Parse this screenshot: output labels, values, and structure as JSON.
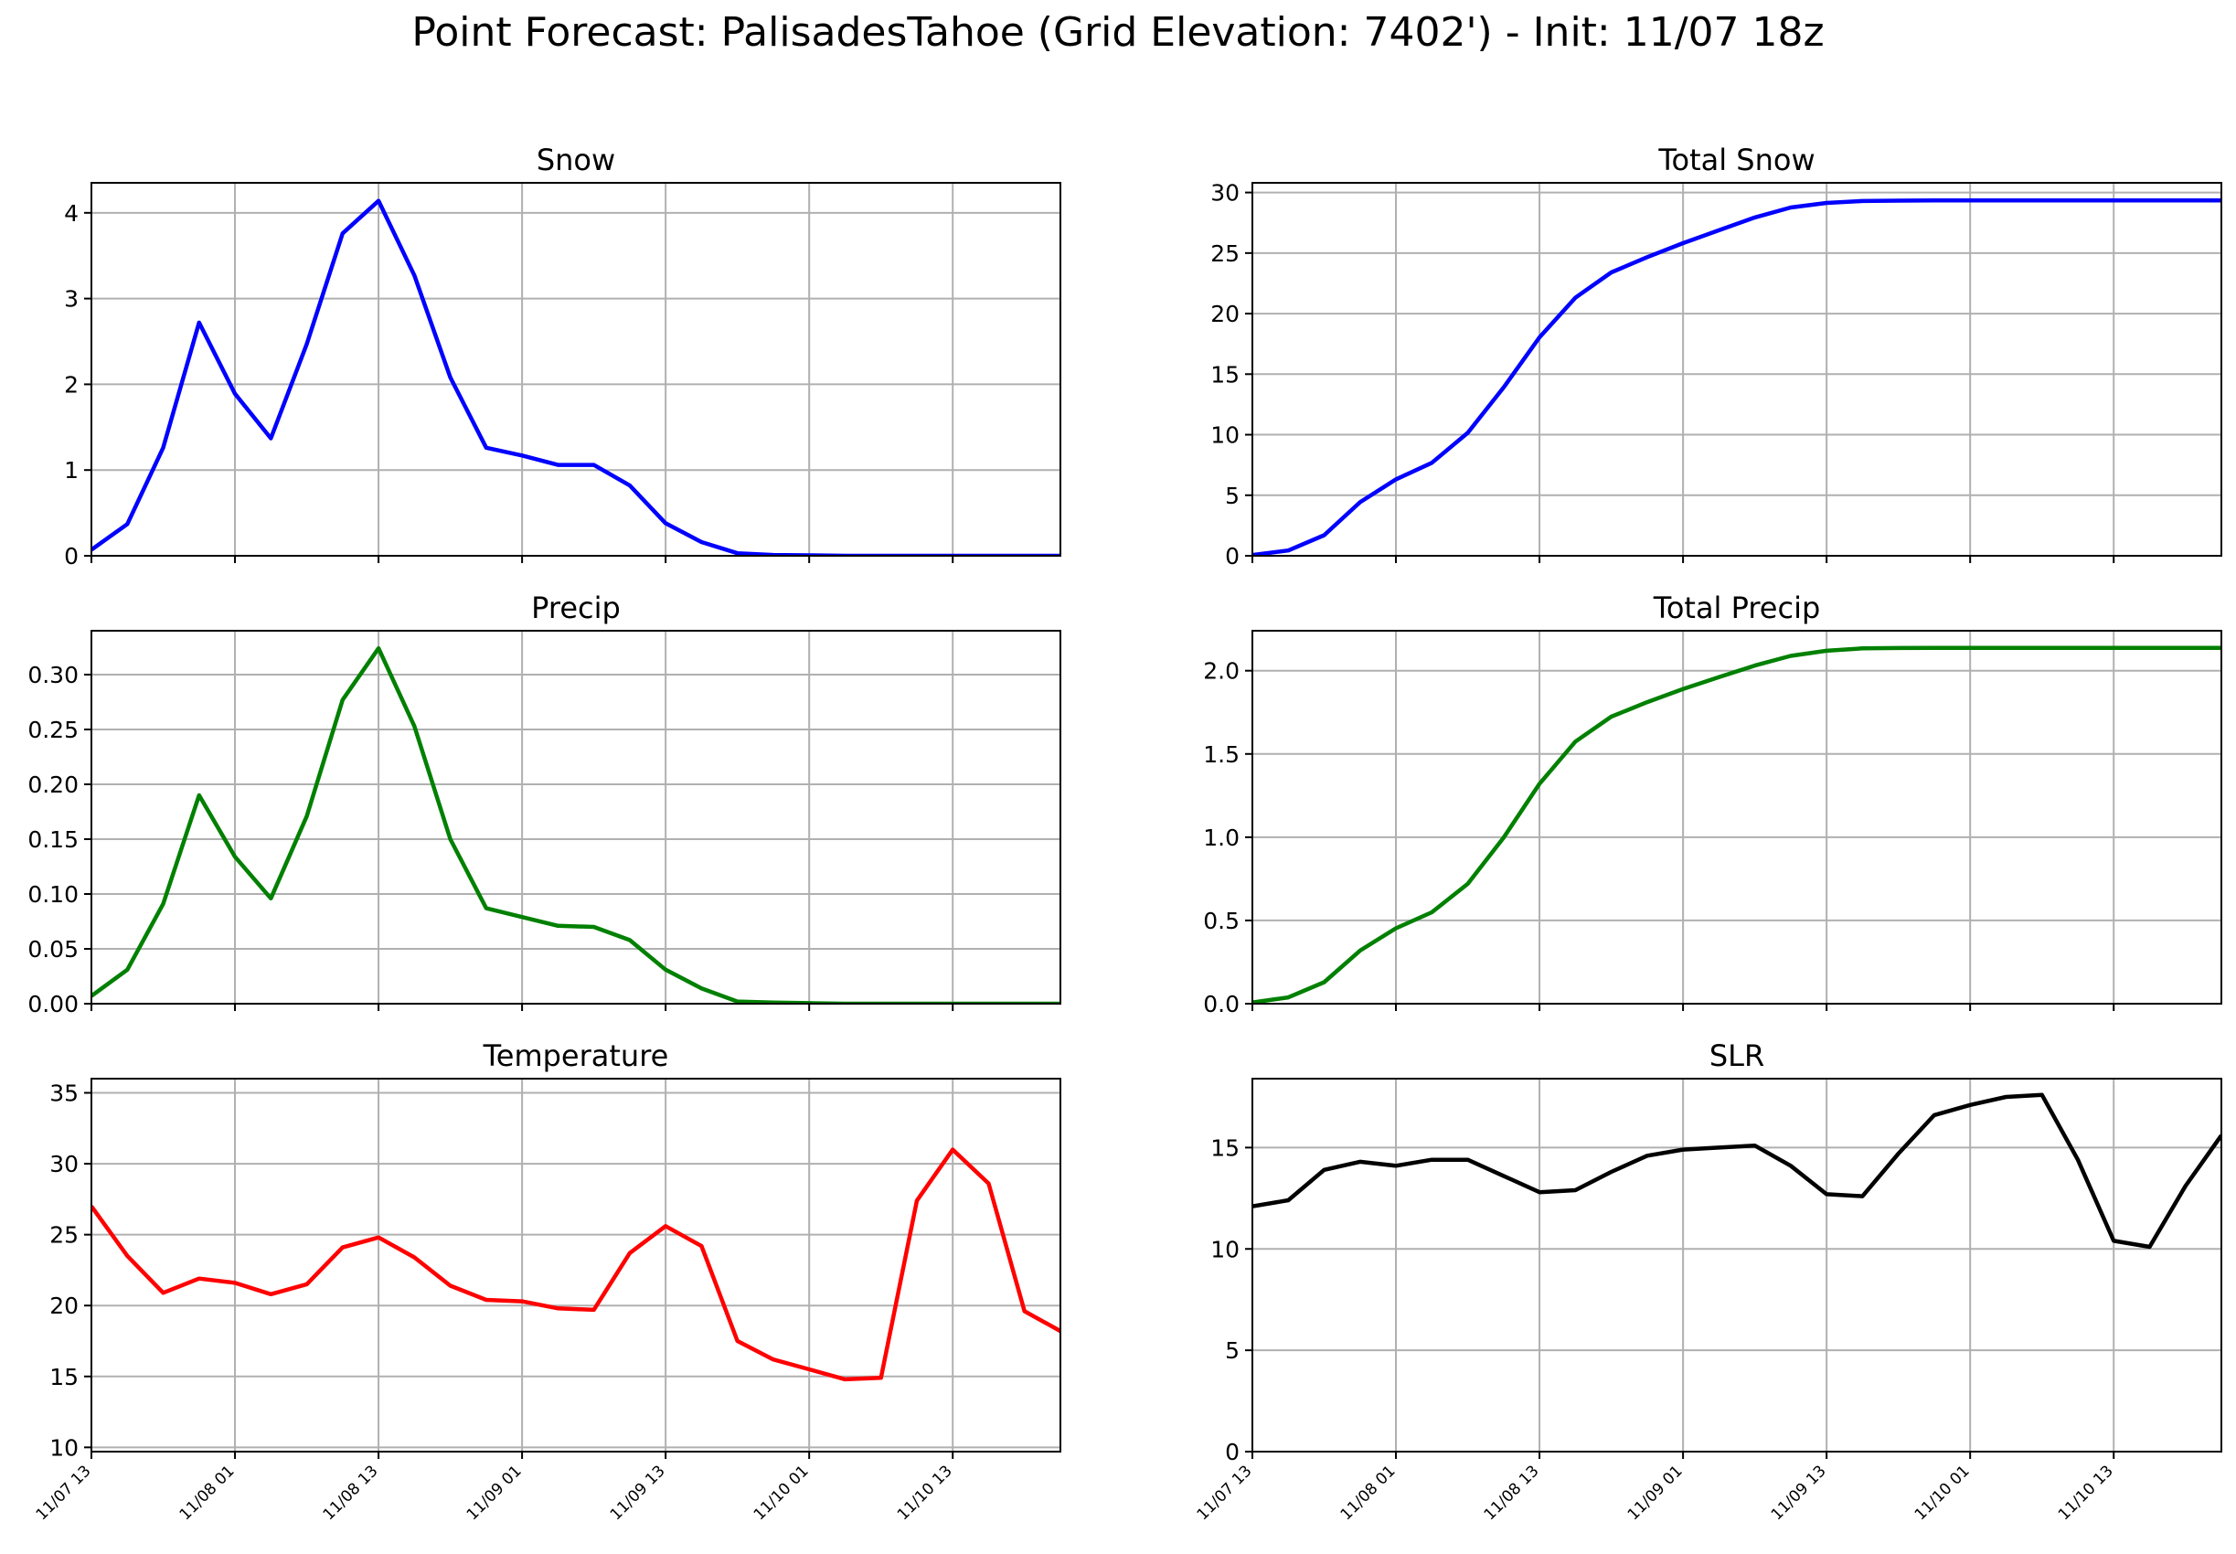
{
  "suptitle": "Point Forecast: PalisadesTahoe (Grid Elevation: 7402') - Init: 11/07 18z",
  "chart_data": [
    {
      "type": "line",
      "title": "Snow",
      "color": "#0000ff",
      "x": [
        "11/07 13",
        "11/07 16",
        "11/07 19",
        "11/07 22",
        "11/08 01",
        "11/08 04",
        "11/08 07",
        "11/08 10",
        "11/08 13",
        "11/08 16",
        "11/08 19",
        "11/08 22",
        "11/09 01",
        "11/09 04",
        "11/09 07",
        "11/09 10",
        "11/09 13",
        "11/09 16",
        "11/09 19",
        "11/09 22",
        "11/10 01",
        "11/10 04",
        "11/10 07",
        "11/10 10",
        "11/10 13",
        "11/10 16",
        "11/10 19",
        "11/10 22"
      ],
      "values": [
        0.07,
        0.37,
        1.26,
        2.72,
        1.89,
        1.37,
        2.47,
        3.76,
        4.14,
        3.27,
        2.08,
        1.26,
        1.17,
        1.06,
        1.06,
        0.82,
        0.38,
        0.16,
        0.03,
        0.01,
        0.005,
        0.0,
        0.0,
        0.0,
        0.0,
        0.0,
        0.0,
        0.0
      ],
      "ylim": [
        0,
        4.35
      ],
      "yticks": [
        "0",
        "1",
        "2",
        "3",
        "4"
      ],
      "ytick_values": [
        0,
        1,
        2,
        3,
        4
      ],
      "xtick_labels": [
        "11/07 13",
        "11/08 01",
        "11/08 13",
        "11/09 01",
        "11/09 13",
        "11/10 01",
        "11/10 13"
      ],
      "show_xticklabels": false,
      "grid": true
    },
    {
      "type": "line",
      "title": "Total Snow",
      "color": "#0000ff",
      "x": [
        "11/07 13",
        "11/07 16",
        "11/07 19",
        "11/07 22",
        "11/08 01",
        "11/08 04",
        "11/08 07",
        "11/08 10",
        "11/08 13",
        "11/08 16",
        "11/08 19",
        "11/08 22",
        "11/09 01",
        "11/09 04",
        "11/09 07",
        "11/09 10",
        "11/09 13",
        "11/09 16",
        "11/09 19",
        "11/09 22",
        "11/10 01",
        "11/10 04",
        "11/10 07",
        "11/10 10",
        "11/10 13",
        "11/10 16",
        "11/10 19",
        "11/10 22"
      ],
      "values": [
        0.07,
        0.44,
        1.7,
        4.42,
        6.31,
        7.68,
        10.15,
        13.9,
        18.04,
        21.31,
        23.4,
        24.66,
        25.82,
        26.88,
        27.94,
        28.76,
        29.14,
        29.3,
        29.33,
        29.34,
        29.34,
        29.34,
        29.34,
        29.34,
        29.34,
        29.34,
        29.34,
        29.34
      ],
      "ylim": [
        0,
        30.8
      ],
      "yticks": [
        "0",
        "5",
        "10",
        "15",
        "20",
        "25",
        "30"
      ],
      "ytick_values": [
        0,
        5,
        10,
        15,
        20,
        25,
        30
      ],
      "xtick_labels": [
        "11/07 13",
        "11/08 01",
        "11/08 13",
        "11/09 01",
        "11/09 13",
        "11/10 01",
        "11/10 13"
      ],
      "show_xticklabels": false,
      "grid": true
    },
    {
      "type": "line",
      "title": "Precip",
      "color": "#008000",
      "x": [
        "11/07 13",
        "11/07 16",
        "11/07 19",
        "11/07 22",
        "11/08 01",
        "11/08 04",
        "11/08 07",
        "11/08 10",
        "11/08 13",
        "11/08 16",
        "11/08 19",
        "11/08 22",
        "11/09 01",
        "11/09 04",
        "11/09 07",
        "11/09 10",
        "11/09 13",
        "11/09 16",
        "11/09 19",
        "11/09 22",
        "11/10 01",
        "11/10 04",
        "11/10 07",
        "11/10 10",
        "11/10 13",
        "11/10 16",
        "11/10 19",
        "11/10 22"
      ],
      "values": [
        0.007,
        0.031,
        0.091,
        0.19,
        0.134,
        0.096,
        0.171,
        0.277,
        0.324,
        0.253,
        0.15,
        0.087,
        0.079,
        0.071,
        0.07,
        0.058,
        0.031,
        0.014,
        0.002,
        0.001,
        0.0005,
        0.0,
        0.0,
        0.0,
        0.0,
        0.0,
        0.0,
        0.0
      ],
      "ylim": [
        0,
        0.34
      ],
      "yticks": [
        "0.00",
        "0.05",
        "0.10",
        "0.15",
        "0.20",
        "0.25",
        "0.30"
      ],
      "ytick_values": [
        0,
        0.05,
        0.1,
        0.15,
        0.2,
        0.25,
        0.3
      ],
      "xtick_labels": [
        "11/07 13",
        "11/08 01",
        "11/08 13",
        "11/09 01",
        "11/09 13",
        "11/10 01",
        "11/10 13"
      ],
      "show_xticklabels": false,
      "grid": true
    },
    {
      "type": "line",
      "title": "Total Precip",
      "color": "#008000",
      "x": [
        "11/07 13",
        "11/07 16",
        "11/07 19",
        "11/07 22",
        "11/08 01",
        "11/08 04",
        "11/08 07",
        "11/08 10",
        "11/08 13",
        "11/08 16",
        "11/08 19",
        "11/08 22",
        "11/09 01",
        "11/09 04",
        "11/09 07",
        "11/09 10",
        "11/09 13",
        "11/09 16",
        "11/09 19",
        "11/09 22",
        "11/10 01",
        "11/10 04",
        "11/10 07",
        "11/10 10",
        "11/10 13",
        "11/10 16",
        "11/10 19",
        "11/10 22"
      ],
      "values": [
        0.007,
        0.038,
        0.129,
        0.319,
        0.453,
        0.549,
        0.72,
        0.997,
        1.321,
        1.574,
        1.724,
        1.811,
        1.89,
        1.961,
        2.031,
        2.089,
        2.12,
        2.134,
        2.136,
        2.137,
        2.137,
        2.137,
        2.137,
        2.137,
        2.137,
        2.137,
        2.137,
        2.137
      ],
      "ylim": [
        0,
        2.24
      ],
      "yticks": [
        "0.0",
        "0.5",
        "1.0",
        "1.5",
        "2.0"
      ],
      "ytick_values": [
        0,
        0.5,
        1.0,
        1.5,
        2.0
      ],
      "xtick_labels": [
        "11/07 13",
        "11/08 01",
        "11/08 13",
        "11/09 01",
        "11/09 13",
        "11/10 01",
        "11/10 13"
      ],
      "show_xticklabels": false,
      "grid": true
    },
    {
      "type": "line",
      "title": "Temperature",
      "color": "#ff0000",
      "x": [
        "11/07 13",
        "11/07 16",
        "11/07 19",
        "11/07 22",
        "11/08 01",
        "11/08 04",
        "11/08 07",
        "11/08 10",
        "11/08 13",
        "11/08 16",
        "11/08 19",
        "11/08 22",
        "11/09 01",
        "11/09 04",
        "11/09 07",
        "11/09 10",
        "11/09 13",
        "11/09 16",
        "11/09 19",
        "11/09 22",
        "11/10 01",
        "11/10 04",
        "11/10 07",
        "11/10 10",
        "11/10 13",
        "11/10 16",
        "11/10 19",
        "11/10 22"
      ],
      "values": [
        27.0,
        23.5,
        20.9,
        21.9,
        21.6,
        20.8,
        21.5,
        24.1,
        24.8,
        23.4,
        21.4,
        20.4,
        20.3,
        19.8,
        19.7,
        23.7,
        25.6,
        24.2,
        17.5,
        16.2,
        15.5,
        14.8,
        14.9,
        27.4,
        31.0,
        28.6,
        19.6,
        18.2
      ],
      "ylim": [
        9.7,
        36.0
      ],
      "yticks": [
        "10",
        "15",
        "20",
        "25",
        "30",
        "35"
      ],
      "ytick_values": [
        10,
        15,
        20,
        25,
        30,
        35
      ],
      "xtick_labels": [
        "11/07 13",
        "11/08 01",
        "11/08 13",
        "11/09 01",
        "11/09 13",
        "11/10 01",
        "11/10 13"
      ],
      "show_xticklabels": true,
      "grid": true
    },
    {
      "type": "line",
      "title": "SLR",
      "color": "#000000",
      "x": [
        "11/07 13",
        "11/07 16",
        "11/07 19",
        "11/07 22",
        "11/08 01",
        "11/08 04",
        "11/08 07",
        "11/08 10",
        "11/08 13",
        "11/08 16",
        "11/08 19",
        "11/08 22",
        "11/09 01",
        "11/09 04",
        "11/09 07",
        "11/09 10",
        "11/09 13",
        "11/09 16",
        "11/09 19",
        "11/09 22",
        "11/10 01",
        "11/10 04",
        "11/10 07",
        "11/10 10",
        "11/10 13",
        "11/10 16",
        "11/10 19",
        "11/10 22"
      ],
      "values": [
        12.1,
        12.4,
        13.9,
        14.3,
        14.1,
        14.4,
        14.4,
        13.6,
        12.8,
        12.9,
        13.8,
        14.6,
        14.9,
        15.0,
        15.1,
        14.1,
        12.7,
        12.6,
        14.7,
        16.6,
        17.1,
        17.5,
        17.6,
        14.4,
        10.4,
        10.1,
        13.1,
        15.6
      ],
      "ylim": [
        0,
        18.4
      ],
      "yticks": [
        "0",
        "5",
        "10",
        "15"
      ],
      "ytick_values": [
        0,
        5,
        10,
        15
      ],
      "xtick_labels": [
        "11/07 13",
        "11/08 01",
        "11/08 13",
        "11/09 01",
        "11/09 13",
        "11/10 01",
        "11/10 13"
      ],
      "show_xticklabels": true,
      "grid": true
    }
  ]
}
